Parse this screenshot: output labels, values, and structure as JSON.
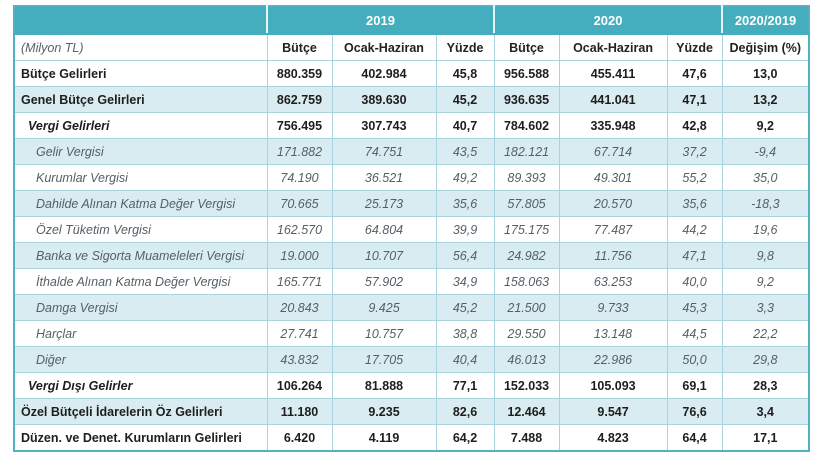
{
  "chart_data": {
    "type": "table",
    "unit_label": "(Milyon TL)",
    "column_groups": [
      {
        "label": "2019",
        "span": 3
      },
      {
        "label": "2020",
        "span": 3
      },
      {
        "label": "2020/2019",
        "span": 1
      }
    ],
    "columns": [
      "Bütçe",
      "Ocak-Haziran",
      "Yüzde",
      "Bütçe",
      "Ocak-Haziran",
      "Yüzde",
      "Değişim (%)"
    ],
    "rows": [
      {
        "label": "Bütçe Gelirleri",
        "style": "bold",
        "indent": 0,
        "values": [
          "880.359",
          "402.984",
          "45,8",
          "956.588",
          "455.411",
          "47,6",
          "13,0"
        ]
      },
      {
        "label": "Genel Bütçe Gelirleri",
        "style": "bold",
        "indent": 0,
        "values": [
          "862.759",
          "389.630",
          "45,2",
          "936.635",
          "441.041",
          "47,1",
          "13,2"
        ]
      },
      {
        "label": "Vergi Gelirleri",
        "style": "bold-italic",
        "indent": 1,
        "values": [
          "756.495",
          "307.743",
          "40,7",
          "784.602",
          "335.948",
          "42,8",
          "9,2"
        ]
      },
      {
        "label": "Gelir Vergisi",
        "style": "italic",
        "indent": 2,
        "values": [
          "171.882",
          "74.751",
          "43,5",
          "182.121",
          "67.714",
          "37,2",
          "-9,4"
        ]
      },
      {
        "label": "Kurumlar Vergisi",
        "style": "italic",
        "indent": 2,
        "values": [
          "74.190",
          "36.521",
          "49,2",
          "89.393",
          "49.301",
          "55,2",
          "35,0"
        ]
      },
      {
        "label": "Dahilde Alınan Katma Değer Vergisi",
        "style": "italic",
        "indent": 2,
        "values": [
          "70.665",
          "25.173",
          "35,6",
          "57.805",
          "20.570",
          "35,6",
          "-18,3"
        ]
      },
      {
        "label": "Özel Tüketim Vergisi",
        "style": "italic",
        "indent": 2,
        "values": [
          "162.570",
          "64.804",
          "39,9",
          "175.175",
          "77.487",
          "44,2",
          "19,6"
        ]
      },
      {
        "label": "Banka ve Sigorta Muameleleri Vergisi",
        "style": "italic",
        "indent": 2,
        "values": [
          "19.000",
          "10.707",
          "56,4",
          "24.982",
          "11.756",
          "47,1",
          "9,8"
        ]
      },
      {
        "label": "İthalde Alınan Katma Değer Vergisi",
        "style": "italic",
        "indent": 2,
        "values": [
          "165.771",
          "57.902",
          "34,9",
          "158.063",
          "63.253",
          "40,0",
          "9,2"
        ]
      },
      {
        "label": "Damga Vergisi",
        "style": "italic",
        "indent": 2,
        "values": [
          "20.843",
          "9.425",
          "45,2",
          "21.500",
          "9.733",
          "45,3",
          "3,3"
        ]
      },
      {
        "label": "Harçlar",
        "style": "italic",
        "indent": 2,
        "values": [
          "27.741",
          "10.757",
          "38,8",
          "29.550",
          "13.148",
          "44,5",
          "22,2"
        ]
      },
      {
        "label": "Diğer",
        "style": "italic",
        "indent": 2,
        "values": [
          "43.832",
          "17.705",
          "40,4",
          "46.013",
          "22.986",
          "50,0",
          "29,8"
        ]
      },
      {
        "label": "Vergi Dışı Gelirler",
        "style": "bold-italic",
        "indent": 1,
        "values": [
          "106.264",
          "81.888",
          "77,1",
          "152.033",
          "105.093",
          "69,1",
          "28,3"
        ]
      },
      {
        "label": "Özel Bütçeli İdarelerin Öz Gelirleri",
        "style": "bold",
        "indent": 0,
        "values": [
          "11.180",
          "9.235",
          "82,6",
          "12.464",
          "9.547",
          "76,6",
          "3,4"
        ]
      },
      {
        "label": "Düzen. ve Denet. Kurumların Gelirleri",
        "style": "bold",
        "indent": 0,
        "values": [
          "6.420",
          "4.119",
          "64,2",
          "7.488",
          "4.823",
          "64,4",
          "17,1"
        ]
      }
    ],
    "colors": {
      "header_teal": "#44adbe",
      "stripe_blue": "#d9ecf2",
      "grid_line": "#a9d4de",
      "outer_border": "#53b1c2",
      "year_text": "#ffffff",
      "bold_text": "#1e1e1e",
      "italic_text": "#545f66"
    },
    "layout": {
      "grid": true,
      "striped": true
    }
  }
}
